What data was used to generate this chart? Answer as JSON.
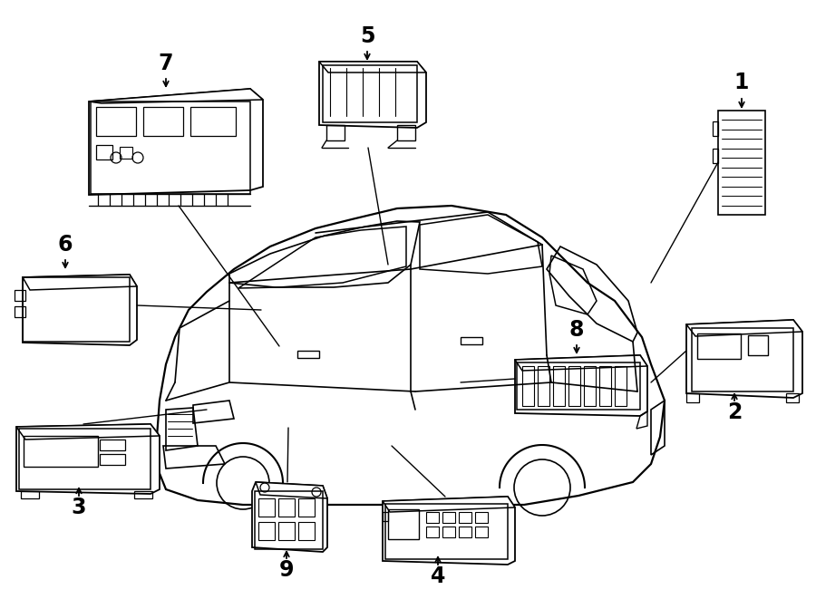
{
  "background_color": "#ffffff",
  "line_color": "#000000",
  "fig_width": 9.0,
  "fig_height": 6.61
}
